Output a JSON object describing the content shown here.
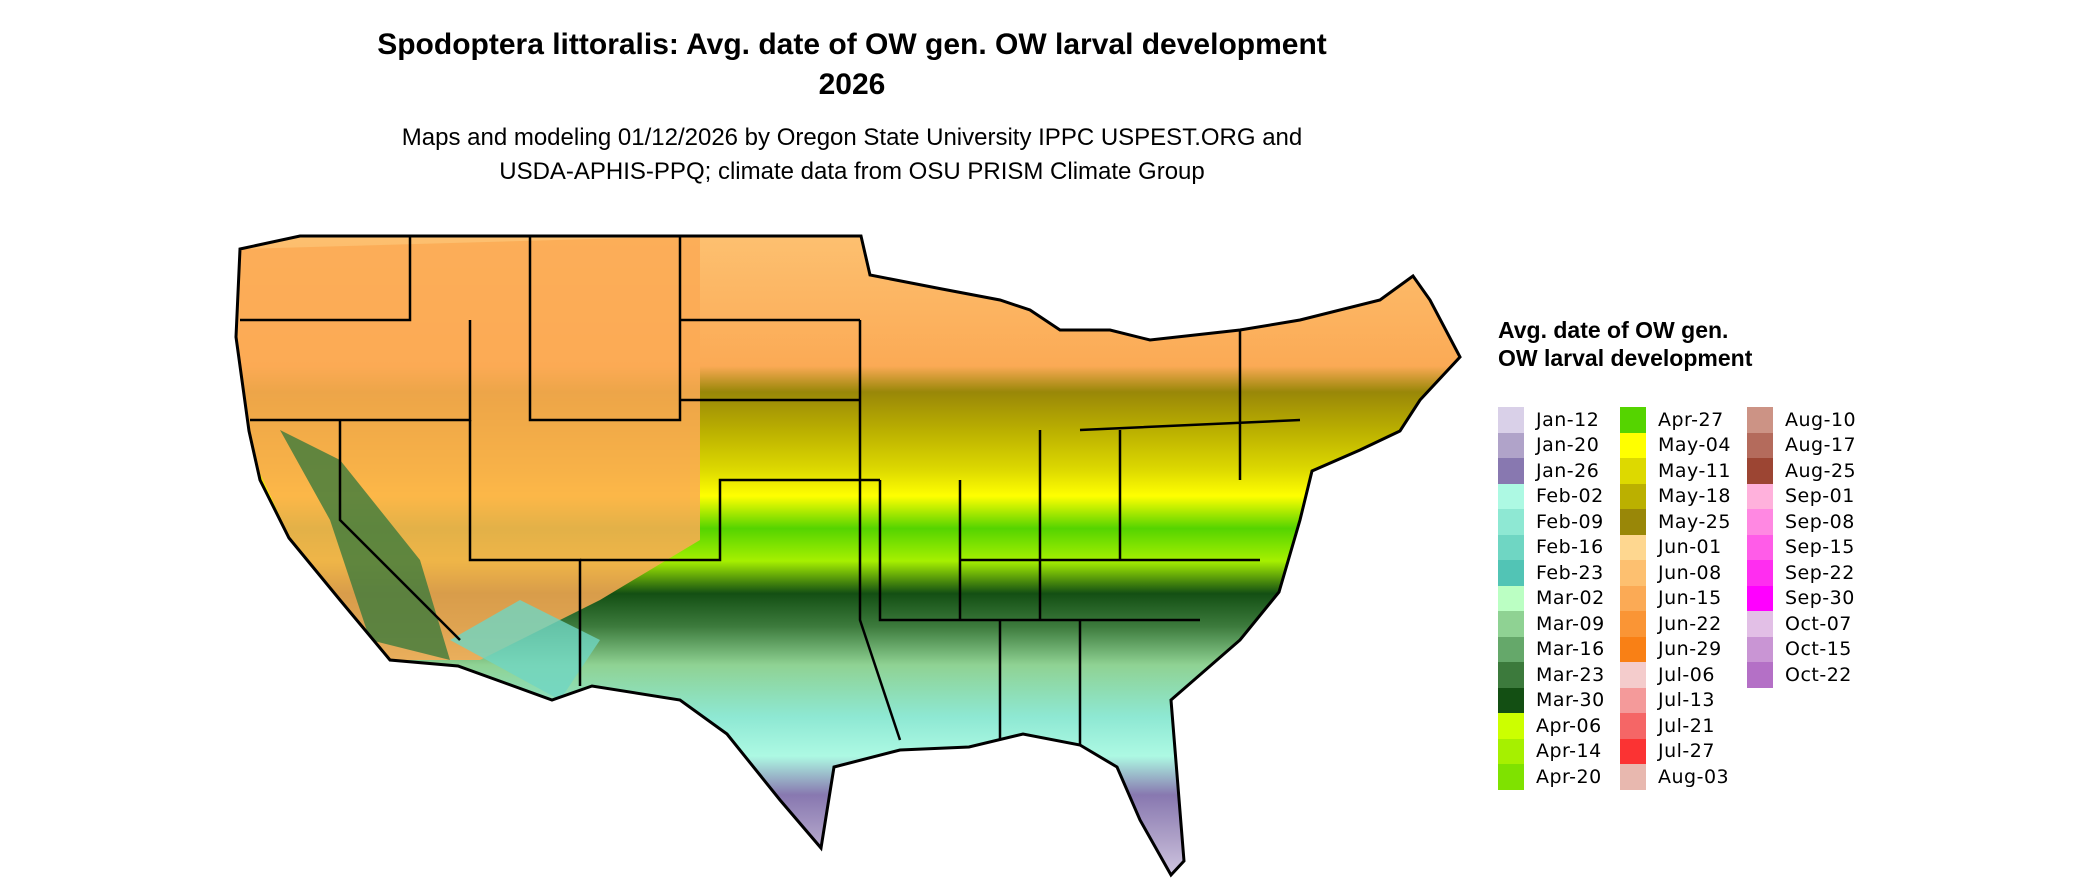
{
  "title_line1": "Spodoptera littoralis: Avg. date of OW gen. OW larval development",
  "title_line2": "2026",
  "subtitle_line1": "Maps and modeling 01/12/2026 by Oregon State University IPPC USPEST.ORG and",
  "subtitle_line2": "USDA-APHIS-PPQ; climate data from OSU PRISM Climate Group",
  "legend": {
    "title": "Avg. date of OW gen. OW larval development",
    "columns": [
      [
        {
          "label": "Jan-12",
          "color": "#D9D0E8"
        },
        {
          "label": "Jan-20",
          "color": "#B0A3C9"
        },
        {
          "label": "Jan-26",
          "color": "#8878B0"
        },
        {
          "label": "Feb-02",
          "color": "#ADF9E3"
        },
        {
          "label": "Feb-09",
          "color": "#8EE8D3"
        },
        {
          "label": "Feb-16",
          "color": "#6FD6C3"
        },
        {
          "label": "Feb-23",
          "color": "#52C4B5"
        },
        {
          "label": "Mar-02",
          "color": "#BBFFC3"
        },
        {
          "label": "Mar-09",
          "color": "#8FD293"
        },
        {
          "label": "Mar-16",
          "color": "#65A86A"
        },
        {
          "label": "Mar-23",
          "color": "#3C7A3C"
        },
        {
          "label": "Mar-30",
          "color": "#134F13"
        },
        {
          "label": "Apr-06",
          "color": "#CCFF00"
        },
        {
          "label": "Apr-14",
          "color": "#A6F000"
        },
        {
          "label": "Apr-20",
          "color": "#7FE200"
        }
      ],
      [
        {
          "label": "Apr-27",
          "color": "#55D400"
        },
        {
          "label": "May-04",
          "color": "#FFFF00"
        },
        {
          "label": "May-11",
          "color": "#DDD900"
        },
        {
          "label": "May-18",
          "color": "#BBB000"
        },
        {
          "label": "May-25",
          "color": "#998708"
        },
        {
          "label": "Jun-01",
          "color": "#FED790"
        },
        {
          "label": "Jun-08",
          "color": "#FDC070"
        },
        {
          "label": "Jun-15",
          "color": "#FBAA55"
        },
        {
          "label": "Jun-22",
          "color": "#FA9535"
        },
        {
          "label": "Jun-29",
          "color": "#F98015"
        },
        {
          "label": "Jul-06",
          "color": "#F4CCCC"
        },
        {
          "label": "Jul-13",
          "color": "#F49A9A"
        },
        {
          "label": "Jul-21",
          "color": "#F56666"
        },
        {
          "label": "Jul-27",
          "color": "#FB3333"
        },
        {
          "label": "Aug-03",
          "color": "#E8B8AF"
        }
      ],
      [
        {
          "label": "Aug-10",
          "color": "#CC9385"
        },
        {
          "label": "Aug-17",
          "color": "#B46B5C"
        },
        {
          "label": "Aug-25",
          "color": "#9C4533"
        },
        {
          "label": "Sep-01",
          "color": "#FFB1DC"
        },
        {
          "label": "Sep-08",
          "color": "#FF88E2"
        },
        {
          "label": "Sep-15",
          "color": "#FF5CE8"
        },
        {
          "label": "Sep-22",
          "color": "#FF2DF0"
        },
        {
          "label": "Sep-30",
          "color": "#FF00FF"
        },
        {
          "label": "Oct-07",
          "color": "#E2BFE6"
        },
        {
          "label": "Oct-15",
          "color": "#C995D4"
        },
        {
          "label": "Oct-22",
          "color": "#B470C6"
        }
      ]
    ]
  }
}
